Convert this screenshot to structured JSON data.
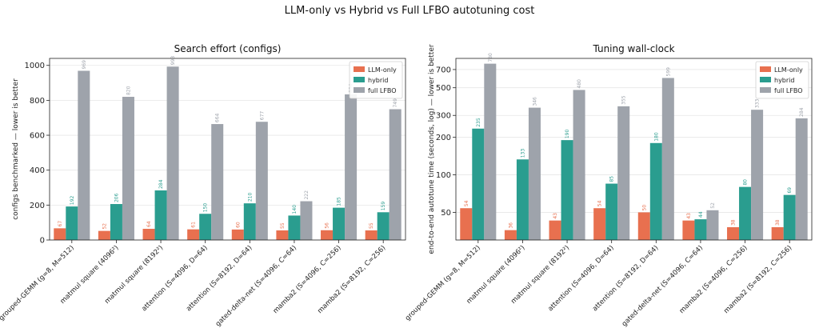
{
  "figure": {
    "suptitle": "LLM-only vs Hybrid vs Full LFBO autotuning cost"
  },
  "colors": {
    "LLM-only": "#e8704f",
    "hybrid": "#2a9d8f",
    "full LFBO": "#9ea3ab"
  },
  "chart_data": [
    {
      "type": "bar",
      "title": "Search effort (configs)",
      "xlabel": "",
      "ylabel": "configs benchmarked — lower is better",
      "yscale": "linear",
      "ylim": [
        0,
        1040
      ],
      "yticks": [
        0,
        200,
        400,
        600,
        800,
        1000
      ],
      "ytick_labels": [
        "0",
        "200",
        "400",
        "600",
        "800",
        "1000"
      ],
      "legend": "top-right",
      "grid": true,
      "categories": [
        "grouped-GEMM (g=8, M=512)",
        "matmul square (4096²)",
        "matmul square (8192²)",
        "attention (S=4096, D=64)",
        "attention (S=8192, D=64)",
        "gated-delta-net (S=4096, C=64)",
        "mamba2 (S=4096, C=256)",
        "mamba2 (S=8192, C=256)"
      ],
      "series": [
        {
          "name": "LLM-only",
          "values": [
            67,
            52,
            64,
            61,
            60,
            55,
            56,
            55
          ]
        },
        {
          "name": "hybrid",
          "values": [
            192,
            206,
            284,
            150,
            210,
            140,
            185,
            159
          ]
        },
        {
          "name": "full LFBO",
          "values": [
            969,
            820,
            993,
            664,
            677,
            222,
            834,
            749
          ]
        }
      ]
    },
    {
      "type": "bar",
      "title": "Tuning wall-clock",
      "xlabel": "",
      "ylabel": "end-to-end autotune time (seconds, log) — lower is better",
      "yscale": "log",
      "ylim": [
        30,
        860
      ],
      "yticks": [
        50,
        100,
        200,
        300,
        500,
        700
      ],
      "ytick_labels": [
        "50",
        "100",
        "200",
        "300",
        "500",
        "700"
      ],
      "legend": "top-right",
      "grid": true,
      "categories": [
        "grouped-GEMM (g=8, M=512)",
        "matmul square (4096²)",
        "matmul square (8192²)",
        "attention (S=4096, D=64)",
        "attention (S=8192, D=64)",
        "gated-delta-net (S=4096, C=64)",
        "mamba2 (S=4096, C=256)",
        "mamba2 (S=8192, C=256)"
      ],
      "series": [
        {
          "name": "LLM-only",
          "values": [
            54,
            36,
            43,
            54,
            50,
            43,
            38,
            38
          ]
        },
        {
          "name": "hybrid",
          "values": [
            235,
            133,
            190,
            85,
            180,
            44,
            80,
            69
          ]
        },
        {
          "name": "full LFBO",
          "values": [
            780,
            346,
            480,
            355,
            599,
            52,
            333,
            284
          ]
        }
      ]
    }
  ]
}
